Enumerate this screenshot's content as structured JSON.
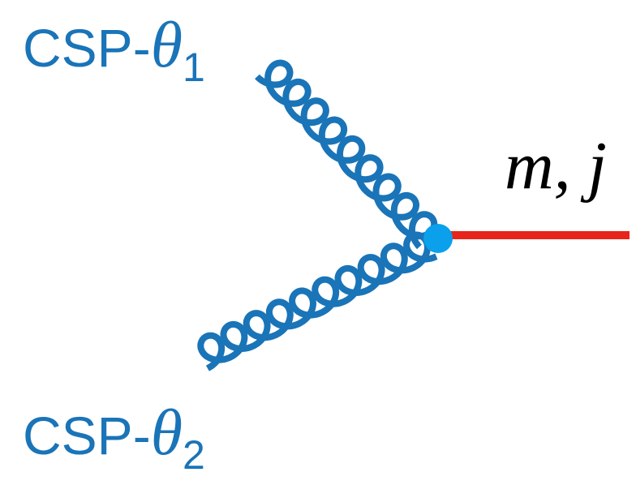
{
  "nodes": [
    {
      "prefix": "CSP-",
      "symbol": "θ",
      "subscript": "1"
    },
    {
      "prefix": "CSP-",
      "symbol": "θ",
      "subscript": "2"
    },
    {
      "label": "m, j"
    }
  ]
}
